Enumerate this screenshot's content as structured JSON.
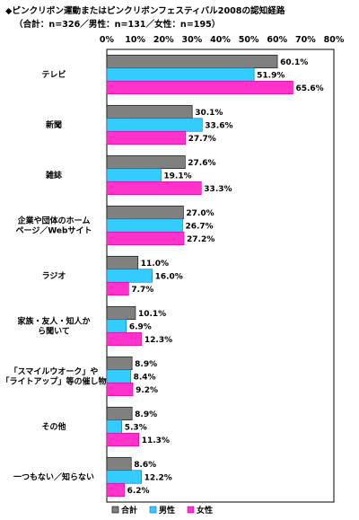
{
  "chart_data": {
    "type": "bar",
    "orientation": "horizontal",
    "title": "◆ピンクリボン運動またはピンクリボンフェスティバル2008の認知経路",
    "subtitle": "（合計：n=326／男性：n=131／女性：n=195）",
    "xlim": [
      0,
      80
    ],
    "x_ticks": [
      "0%",
      "10%",
      "20%",
      "30%",
      "40%",
      "50%",
      "60%",
      "70%",
      "80%"
    ],
    "grid": false,
    "legend_position": "bottom",
    "categories": [
      [
        "テレビ"
      ],
      [
        "新聞"
      ],
      [
        "雑誌"
      ],
      [
        "企業や団体のホーム",
        "ページ／Webサイト"
      ],
      [
        "ラジオ"
      ],
      [
        "家族・友人・知人か",
        "ら聞いて"
      ],
      [
        "「スマイルウオーク」や",
        "「ライトアップ」等の催し物"
      ],
      [
        "その他"
      ],
      [
        "一つもない／知らない"
      ]
    ],
    "series": [
      {
        "name": "合計",
        "color": "#808080",
        "values": [
          60.1,
          30.1,
          27.6,
          27.0,
          11.0,
          10.1,
          8.9,
          8.9,
          8.6
        ]
      },
      {
        "name": "男性",
        "color": "#33ccff",
        "values": [
          51.9,
          33.6,
          19.1,
          26.7,
          16.0,
          6.9,
          8.4,
          5.3,
          12.2
        ]
      },
      {
        "name": "女性",
        "color": "#ff33cc",
        "values": [
          65.6,
          27.7,
          33.3,
          27.2,
          7.7,
          12.3,
          9.2,
          11.3,
          6.2
        ]
      }
    ]
  }
}
